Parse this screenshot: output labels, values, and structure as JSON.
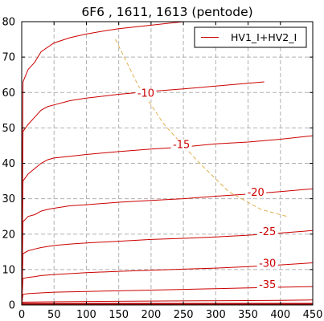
{
  "chart_data": {
    "type": "line",
    "title": "6F6 , 1611, 1613 (pentode)",
    "xlabel": "",
    "ylabel": "",
    "xlim": [
      0,
      450
    ],
    "ylim": [
      0,
      80
    ],
    "xticks": [
      0,
      50,
      100,
      150,
      200,
      250,
      300,
      350,
      400,
      450
    ],
    "yticks": [
      0,
      10,
      20,
      30,
      40,
      50,
      60,
      70,
      80
    ],
    "grid": true,
    "legend": {
      "position": "top-right",
      "entries": [
        "HV1_I+HV2_I"
      ]
    },
    "colors": {
      "curves": "#cc0000",
      "load_line": "#e0b050",
      "grid": "#b0b0b0"
    },
    "series": [
      {
        "grid_bias": "0",
        "x": [
          0,
          2,
          10,
          20,
          30,
          50,
          75,
          100,
          125,
          150,
          200,
          250
        ],
        "y": [
          0,
          63,
          66.5,
          68.5,
          71.5,
          74,
          75.5,
          76.5,
          77.3,
          78,
          79,
          80
        ]
      },
      {
        "grid_bias": "-10",
        "x": [
          0,
          2,
          10,
          20,
          30,
          40,
          50,
          75,
          100,
          150,
          200,
          250,
          300,
          350,
          375
        ],
        "y": [
          0,
          49,
          51,
          53,
          55,
          56,
          56.5,
          57.7,
          58.4,
          59.5,
          60.3,
          61,
          61.8,
          62.6,
          63
        ]
      },
      {
        "grid_bias": "-15",
        "x": [
          0,
          2,
          10,
          20,
          30,
          40,
          50,
          75,
          100,
          150,
          200,
          250,
          300,
          350,
          400,
          450
        ],
        "y": [
          0,
          35,
          37,
          38.5,
          40,
          41,
          41.5,
          42,
          42.5,
          43.3,
          44,
          44.6,
          45.5,
          46,
          46.8,
          47.8
        ]
      },
      {
        "grid_bias": "-20",
        "x": [
          0,
          2,
          10,
          20,
          30,
          40,
          50,
          75,
          100,
          150,
          200,
          250,
          300,
          350,
          400,
          450
        ],
        "y": [
          0,
          23.5,
          25,
          25.5,
          26.5,
          27,
          27.3,
          28,
          28.3,
          29,
          29.5,
          30,
          30.7,
          31.3,
          32,
          32.8
        ]
      },
      {
        "grid_bias": "-25",
        "x": [
          0,
          2,
          10,
          20,
          30,
          50,
          75,
          100,
          150,
          200,
          250,
          300,
          350,
          400,
          450
        ],
        "y": [
          0,
          14.5,
          15.3,
          15.8,
          16.2,
          16.8,
          17.2,
          17.5,
          18,
          18.5,
          18.8,
          19.2,
          19.7,
          20.3,
          21
        ]
      },
      {
        "grid_bias": "-30",
        "x": [
          0,
          2,
          10,
          20,
          30,
          50,
          100,
          150,
          200,
          250,
          300,
          350,
          400,
          450
        ],
        "y": [
          0,
          7.5,
          7.8,
          8,
          8.3,
          8.6,
          9.1,
          9.5,
          9.8,
          10.1,
          10.4,
          10.8,
          11.3,
          11.9
        ]
      },
      {
        "grid_bias": "-35",
        "x": [
          0,
          2,
          10,
          20,
          50,
          100,
          150,
          200,
          250,
          300,
          350,
          400,
          450
        ],
        "y": [
          0,
          3,
          3.2,
          3.3,
          3.6,
          3.8,
          4,
          4.2,
          4.4,
          4.6,
          4.8,
          5,
          5.2
        ]
      },
      {
        "grid_bias": "-40",
        "x": [
          0,
          2,
          50,
          100,
          200,
          300,
          400,
          450
        ],
        "y": [
          0,
          0.8,
          0.9,
          1,
          1.1,
          1.2,
          1.3,
          1.4
        ]
      },
      {
        "grid_bias": "-45",
        "x": [
          0,
          2,
          100,
          200,
          300,
          400,
          450
        ],
        "y": [
          0,
          0.1,
          0.1,
          0.1,
          0.1,
          0.1,
          0.1
        ]
      }
    ],
    "load_line": {
      "x": [
        145,
        180,
        220,
        270,
        320,
        370,
        410
      ],
      "y": [
        75,
        62,
        51,
        41,
        32,
        27,
        25
      ]
    },
    "curve_labels": [
      {
        "text": "-10",
        "x": 192,
        "y": 59
      },
      {
        "text": "-15",
        "x": 247,
        "y": 44.5
      },
      {
        "text": "-20",
        "x": 362,
        "y": 31
      },
      {
        "text": "-25",
        "x": 380,
        "y": 20
      },
      {
        "text": "-30",
        "x": 380,
        "y": 11
      },
      {
        "text": "-35",
        "x": 380,
        "y": 5
      }
    ]
  }
}
